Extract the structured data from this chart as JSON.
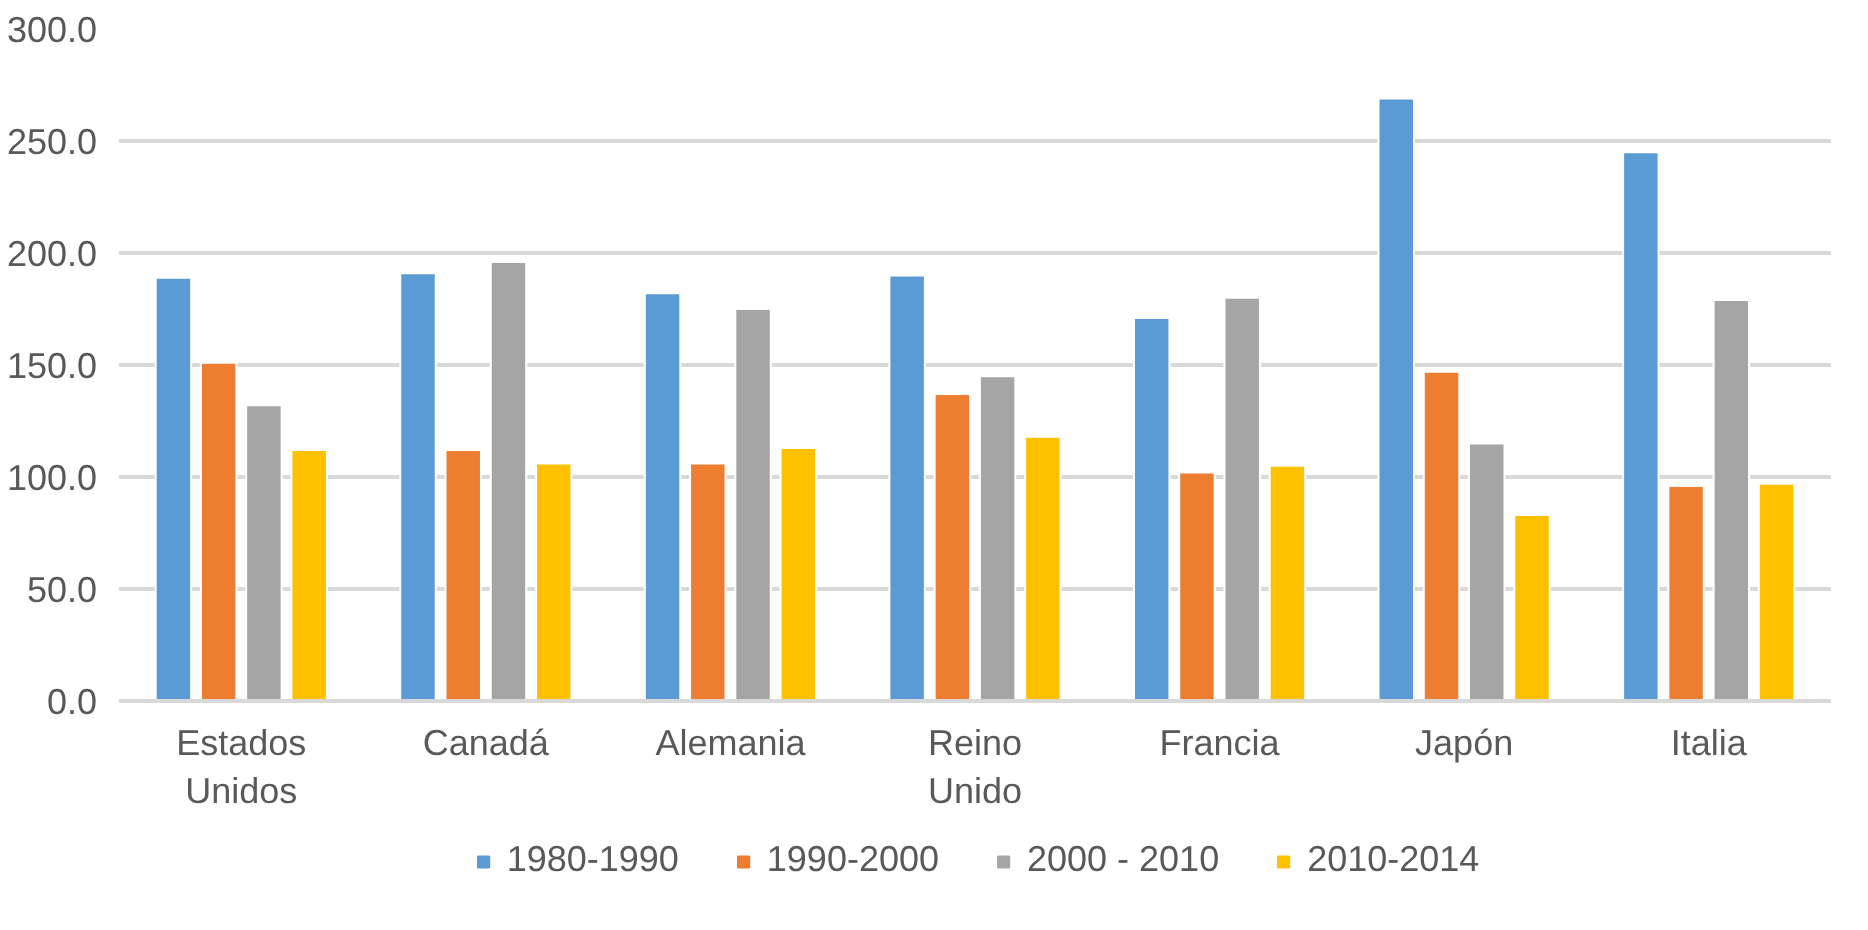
{
  "chart_data": {
    "type": "bar",
    "categories": [
      "Estados Unidos",
      "Canadá",
      "Alemania",
      "Reino Unido",
      "Francia",
      "Japón",
      "Italia"
    ],
    "series": [
      {
        "name": "1980-1990",
        "color": "#5b9bd5",
        "values": [
          189,
          191,
          182,
          190,
          171,
          269,
          245
        ]
      },
      {
        "name": "1990-2000",
        "color": "#ed7d31",
        "values": [
          151,
          112,
          106,
          137,
          102,
          147,
          96
        ]
      },
      {
        "name": "2000 - 2010",
        "color": "#a5a5a5",
        "values": [
          132,
          196,
          175,
          145,
          180,
          115,
          179
        ]
      },
      {
        "name": "2010-2014",
        "color": "#ffc000",
        "values": [
          112,
          106,
          113,
          118,
          105,
          83,
          97
        ]
      }
    ],
    "ylim": [
      0,
      300
    ],
    "yticks": [
      {
        "value": 0,
        "label": "0.0"
      },
      {
        "value": 50,
        "label": "50.0"
      },
      {
        "value": 100,
        "label": "100.0"
      },
      {
        "value": 150,
        "label": "150.0"
      },
      {
        "value": 200,
        "label": "200.0"
      },
      {
        "value": 250,
        "label": "250.0"
      },
      {
        "value": 300,
        "label": "300.0"
      }
    ],
    "grid": "y",
    "legend": "bottom"
  }
}
